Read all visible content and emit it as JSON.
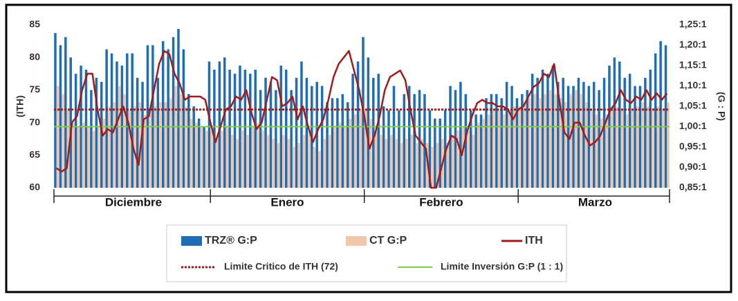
{
  "chart_data": {
    "type": "bar-line",
    "ylabel": "(ITH)",
    "y2label": "(G : P)",
    "ylim": [
      60,
      85
    ],
    "yticks": [
      60,
      65,
      70,
      75,
      80,
      85
    ],
    "y2lim": [
      0.85,
      1.25
    ],
    "y2ticks": [
      {
        "value": 0.85,
        "label": "0,85:1"
      },
      {
        "value": 0.9,
        "label": "0,90:1"
      },
      {
        "value": 0.95,
        "label": "0,95:1"
      },
      {
        "value": 1.0,
        "label": "1,00:1"
      },
      {
        "value": 1.05,
        "label": "1,05:1"
      },
      {
        "value": 1.1,
        "label": "1,10:1"
      },
      {
        "value": 1.15,
        "label": "1,15:1"
      },
      {
        "value": 1.2,
        "label": "1,20:1"
      },
      {
        "value": 1.25,
        "label": "1,25:1"
      }
    ],
    "categories": [
      null,
      null,
      null,
      null,
      null,
      null,
      null,
      null,
      null,
      null,
      null,
      null,
      null,
      null,
      null,
      "Diciembre",
      null,
      null,
      null,
      null,
      null,
      null,
      null,
      null,
      null,
      null,
      null,
      null,
      null,
      null,
      null,
      null,
      null,
      null,
      null,
      null,
      null,
      null,
      null,
      null,
      null,
      null,
      null,
      null,
      null,
      "Enero",
      null,
      null,
      null,
      null,
      null,
      null,
      null,
      null,
      null,
      null,
      null,
      null,
      null,
      null,
      null,
      null,
      null,
      null,
      null,
      null,
      null,
      null,
      null,
      null,
      null,
      null,
      null,
      null,
      null,
      "Febrero",
      null,
      null,
      null,
      null,
      null,
      null,
      null,
      null,
      null,
      null,
      null,
      null,
      null,
      null,
      null,
      null,
      null,
      null,
      null,
      null,
      null,
      null,
      null,
      null,
      null,
      null,
      null,
      null,
      null,
      "Marzo",
      null,
      null,
      null,
      null,
      null,
      null,
      null,
      null,
      null,
      null,
      null,
      null,
      null,
      null
    ],
    "series": [
      {
        "name": "TRZ® G:P",
        "color": "#1f6db3",
        "axis": "y2",
        "kind": "bar",
        "values": [
          1.23,
          1.2,
          1.22,
          1.17,
          1.13,
          1.15,
          1.14,
          1.09,
          1.12,
          1.11,
          1.19,
          1.18,
          1.16,
          1.15,
          1.18,
          1.18,
          1.12,
          1.11,
          1.2,
          1.2,
          1.12,
          1.21,
          1.19,
          1.22,
          1.24,
          1.19,
          1.08,
          1.05,
          1.02,
          1.0,
          1.16,
          1.14,
          1.16,
          1.17,
          1.14,
          1.13,
          1.15,
          1.14,
          1.13,
          1.14,
          1.09,
          1.12,
          1.11,
          1.09,
          1.15,
          1.14,
          1.09,
          1.12,
          1.16,
          1.12,
          1.1,
          1.11,
          1.1,
          1.06,
          1.07,
          1.07,
          1.08,
          1.06,
          1.13,
          1.16,
          1.22,
          1.17,
          1.12,
          1.13,
          1.05,
          1.04,
          1.1,
          1.04,
          1.08,
          1.1,
          1.08,
          1.09,
          1.08,
          1.04,
          1.02,
          1.02,
          1.04,
          1.1,
          1.09,
          1.11,
          1.08,
          1.04,
          1.03,
          1.03,
          1.07,
          1.08,
          1.08,
          1.07,
          1.11,
          1.1,
          1.07,
          1.08,
          1.09,
          1.13,
          1.12,
          1.14,
          1.13,
          1.15,
          1.11,
          1.12,
          1.1,
          1.1,
          1.12,
          1.11,
          1.1,
          1.11,
          1.09,
          1.12,
          1.15,
          1.17,
          1.16,
          1.12,
          1.13,
          1.1,
          1.1,
          1.12,
          1.14,
          1.18,
          1.21,
          1.2
        ]
      },
      {
        "name": "CT G:P",
        "color": "#f2c6ab",
        "axis": "y2",
        "kind": "bar",
        "values": [
          1.1,
          1.08,
          1.04,
          1.01,
          1.0,
          1.01,
          1.0,
          0.99,
          1.0,
          1.02,
          1.05,
          1.06,
          1.1,
          1.08,
          1.04,
          1.05,
          1.06,
          1.03,
          1.04,
          1.05,
          1.06,
          1.06,
          1.07,
          1.1,
          1.08,
          1.05,
          1.02,
          1.01,
          1.0,
          0.99,
          0.99,
          0.97,
          0.99,
          1.0,
          0.98,
          0.97,
          0.99,
          0.98,
          1.0,
          1.01,
          0.99,
          0.98,
          0.97,
          0.96,
          0.98,
          0.97,
          0.95,
          0.96,
          0.98,
          0.99,
          0.95,
          0.94,
          0.97,
          0.98,
          1.0,
          1.01,
          1.0,
          1.02,
          1.03,
          1.04,
          1.04,
          1.02,
          0.99,
          0.98,
          0.97,
          0.98,
          0.97,
          0.96,
          0.97,
          0.98,
          0.96,
          0.97,
          0.96,
          0.95,
          0.96,
          0.97,
          0.96,
          0.98,
          0.99,
          1.0,
          0.99,
          0.98,
          1.01,
          1.02,
          1.03,
          1.04,
          1.04,
          1.03,
          1.04,
          1.05,
          1.05,
          1.06,
          1.07,
          1.08,
          1.07,
          1.08,
          1.09,
          1.08,
          1.07,
          1.06,
          1.08,
          1.09,
          1.08,
          1.06,
          1.04,
          1.03,
          1.02,
          1.03,
          1.04,
          1.05,
          1.04,
          1.03,
          1.04,
          1.05,
          1.06,
          1.05,
          1.04,
          1.05,
          1.04,
          1.06
        ]
      },
      {
        "name": "ITH",
        "color": "#a31a1a",
        "axis": "y",
        "kind": "line",
        "values": [
          63,
          62.5,
          63,
          70,
          71,
          75,
          77.5,
          77.5,
          72,
          68,
          69,
          68.5,
          70.5,
          72.5,
          70,
          66,
          63.5,
          70.5,
          71,
          75,
          79,
          81,
          80.5,
          77.5,
          76,
          73.5,
          74,
          74,
          74,
          73.5,
          70,
          67,
          69.5,
          72,
          72.5,
          74,
          73.5,
          75,
          71.5,
          69,
          70,
          73.5,
          77,
          76.5,
          72.5,
          73,
          74,
          70.5,
          72.5,
          69.5,
          67,
          69,
          70.5,
          73.5,
          77,
          79,
          80,
          81,
          78,
          75,
          71,
          66,
          68,
          71,
          75,
          77,
          77.5,
          78,
          76.5,
          72,
          68,
          67,
          66,
          60,
          60,
          63,
          66,
          68,
          67.5,
          65,
          68.5,
          71,
          73,
          73.5,
          73,
          73,
          72.5,
          72.5,
          72,
          70.5,
          72,
          72.5,
          74,
          75.5,
          76,
          77.5,
          77,
          79,
          73.5,
          68.5,
          67.5,
          70,
          70,
          68,
          66.5,
          67,
          68,
          70,
          72,
          73,
          75,
          73.5,
          73,
          74,
          73.5,
          75,
          73.5,
          74.5,
          73.5,
          74.5
        ]
      }
    ],
    "reference_lines": [
      {
        "name": "Limite Critico de ITH (72)",
        "value": 72,
        "axis": "y",
        "color": "#a31a1a",
        "style": "dotted"
      },
      {
        "name": "Limite Inversión G:P (1 : 1)",
        "value": 1,
        "axis": "y2",
        "color": "#7ccd4a",
        "style": "solid"
      }
    ]
  }
}
